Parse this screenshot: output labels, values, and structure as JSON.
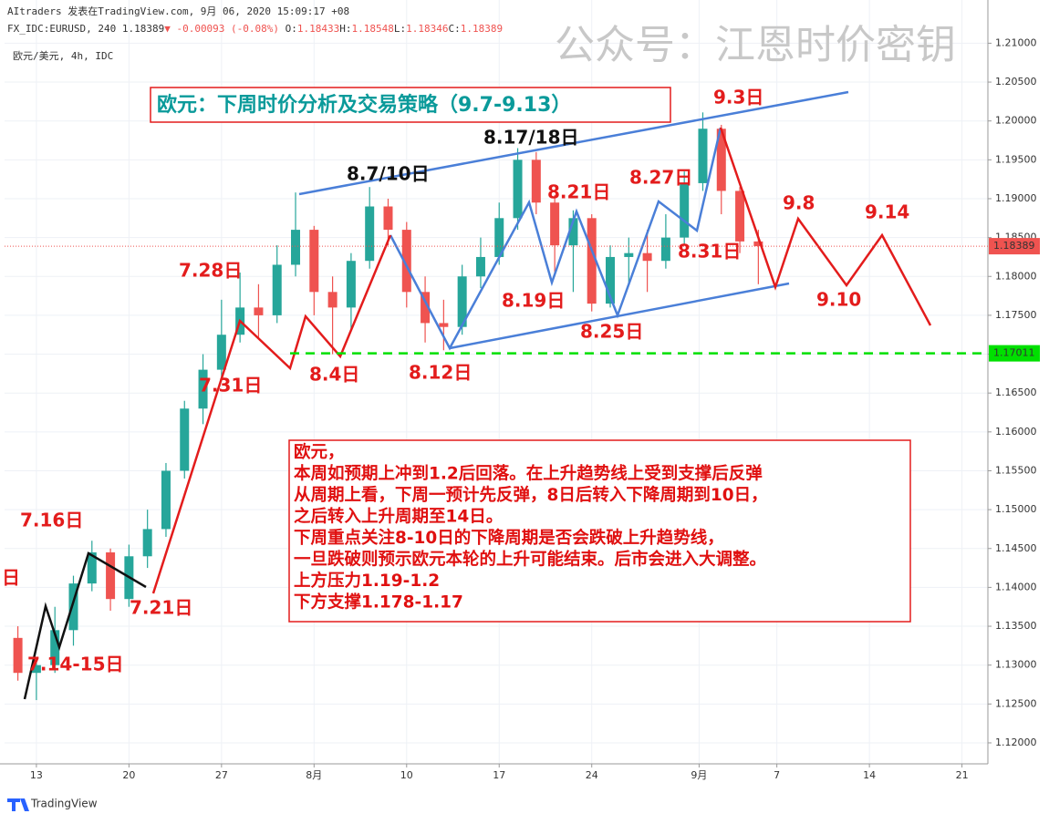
{
  "header": {
    "line1": "AItraders 发表在TradingView.com, 9月 06, 2020 15:09:17 +08",
    "symbol": "FX_IDC:EURUSD, 240",
    "last": "1.18389",
    "change": "▼ -0.00093 (-0.08%)",
    "ohlc": [
      "O:",
      "1.18433",
      "H:",
      "1.18548",
      "L:",
      "1.18346",
      "C:",
      "1.18389"
    ],
    "pair": "欧元/美元, 4h, IDC",
    "watermark": "公众号：江恩时价密钥"
  },
  "chart_data": {
    "type": "candlestick",
    "title": "欧元：下周时价分析及交易策略（9.7-9.13）",
    "x": [
      -1,
      0,
      1,
      2,
      3,
      4,
      5,
      6,
      7,
      8,
      9,
      10,
      11,
      12,
      13,
      14,
      15,
      16,
      17,
      18,
      19,
      20,
      21,
      22,
      23,
      24,
      25,
      26,
      27,
      28,
      29,
      30,
      31,
      32,
      33,
      34,
      35,
      36,
      37,
      38,
      39
    ],
    "open": [
      1.1335,
      1.129,
      1.13,
      1.1345,
      1.1405,
      1.1445,
      1.1385,
      1.144,
      1.1475,
      1.155,
      1.163,
      1.168,
      1.1725,
      1.176,
      1.175,
      1.1815,
      1.186,
      1.178,
      1.176,
      1.182,
      1.189,
      1.186,
      1.178,
      1.174,
      1.1735,
      1.18,
      1.1825,
      1.1875,
      1.195,
      1.1895,
      1.184,
      1.1875,
      1.1765,
      1.1825,
      1.183,
      1.182,
      1.185,
      1.192,
      1.199,
      1.191,
      1.1845
    ],
    "high": [
      1.135,
      1.1305,
      1.1375,
      1.1415,
      1.146,
      1.145,
      1.1455,
      1.15,
      1.156,
      1.164,
      1.17,
      1.177,
      1.1805,
      1.179,
      1.184,
      1.1908,
      1.1865,
      1.18,
      1.183,
      1.1915,
      1.19,
      1.187,
      1.18,
      1.177,
      1.1815,
      1.185,
      1.1895,
      1.1965,
      1.196,
      1.1905,
      1.1885,
      1.188,
      1.184,
      1.185,
      1.186,
      1.188,
      1.1935,
      1.2011,
      1.1995,
      1.1915,
      1.186
    ],
    "low": [
      1.128,
      1.1255,
      1.129,
      1.1325,
      1.1395,
      1.137,
      1.1375,
      1.1425,
      1.1465,
      1.154,
      1.161,
      1.1665,
      1.1715,
      1.172,
      1.174,
      1.18,
      1.175,
      1.17,
      1.173,
      1.181,
      1.184,
      1.176,
      1.1715,
      1.1705,
      1.1725,
      1.1785,
      1.1815,
      1.186,
      1.188,
      1.18,
      1.178,
      1.1755,
      1.176,
      1.179,
      1.178,
      1.181,
      1.184,
      1.191,
      1.188,
      1.183,
      1.179
    ],
    "close": [
      1.129,
      1.13,
      1.1345,
      1.1405,
      1.1445,
      1.1385,
      1.144,
      1.1475,
      1.155,
      1.163,
      1.168,
      1.1725,
      1.176,
      1.175,
      1.1815,
      1.186,
      1.178,
      1.176,
      1.182,
      1.189,
      1.186,
      1.178,
      1.174,
      1.1735,
      1.18,
      1.1825,
      1.1875,
      1.195,
      1.1895,
      1.184,
      1.1875,
      1.1765,
      1.1825,
      1.183,
      1.182,
      1.185,
      1.192,
      1.199,
      1.191,
      1.1845,
      1.18389
    ],
    "up_color": "#26a69a",
    "down_color": "#ef5350",
    "xlim": [
      -1.72,
      51.4
    ],
    "xticks": [
      {
        "value": 0,
        "label": "13"
      },
      {
        "value": 5,
        "label": "20"
      },
      {
        "value": 10,
        "label": "27"
      },
      {
        "value": 15,
        "label": "8月"
      },
      {
        "value": 20,
        "label": "10"
      },
      {
        "value": 25,
        "label": "17"
      },
      {
        "value": 30,
        "label": "24"
      },
      {
        "value": 35.8,
        "label": "9月"
      },
      {
        "value": 40,
        "label": "7"
      },
      {
        "value": 45,
        "label": "14"
      },
      {
        "value": 50,
        "label": "21"
      }
    ],
    "ylim": [
      1.1173,
      1.2104
    ],
    "yticks": [
      {
        "value": 1.12,
        "label": "1.12000"
      },
      {
        "value": 1.125,
        "label": "1.12500"
      },
      {
        "value": 1.13,
        "label": "1.13000"
      },
      {
        "value": 1.135,
        "label": "1.13500"
      },
      {
        "value": 1.14,
        "label": "1.14000"
      },
      {
        "value": 1.145,
        "label": "1.14500"
      },
      {
        "value": 1.15,
        "label": "1.15000"
      },
      {
        "value": 1.155,
        "label": "1.15500"
      },
      {
        "value": 1.16,
        "label": "1.16000"
      },
      {
        "value": 1.165,
        "label": "1.16500"
      },
      {
        "value": 1.17,
        "label": "1.17000"
      },
      {
        "value": 1.175,
        "label": "1.17500"
      },
      {
        "value": 1.18,
        "label": "1.18000"
      },
      {
        "value": 1.185,
        "label": "1.18500"
      },
      {
        "value": 1.19,
        "label": "1.19000"
      },
      {
        "value": 1.195,
        "label": "1.19500"
      },
      {
        "value": 1.2,
        "label": "1.20000"
      },
      {
        "value": 1.205,
        "label": "1.20500"
      },
      {
        "value": 1.21,
        "label": "1.21000"
      }
    ],
    "support_level": 1.17011,
    "support_color": "#00e000",
    "grid": true
  },
  "annotations": [
    "8.7/10日",
    "8.17/18日",
    "9.3日",
    "8.21日",
    "8.27日",
    "9.8",
    "9.14",
    "8.31日",
    "7.28日",
    "8.19日",
    "9.10",
    "8.25日",
    "8.4日",
    "8.12日",
    "7.31日",
    "7.16日",
    "日",
    "7.21日",
    "7.14-15日"
  ],
  "note": [
    "欧元，",
    "本周如预期上冲到1.2后回落。在上升趋势线上受到支撑后反弹",
    "从周期上看，下周一预计先反弹，8日后转入下降周期到10日，",
    "之后转入上升周期至14日。",
    "下周重点关注8-10日的下降周期是否会跌破上升趋势线，",
    "一旦跌破则预示欧元本轮的上升可能结束。后市会进入大调整。",
    "上方压力1.19-1.2",
    "下方支撑1.178-1.17"
  ],
  "footer": "TradingView"
}
